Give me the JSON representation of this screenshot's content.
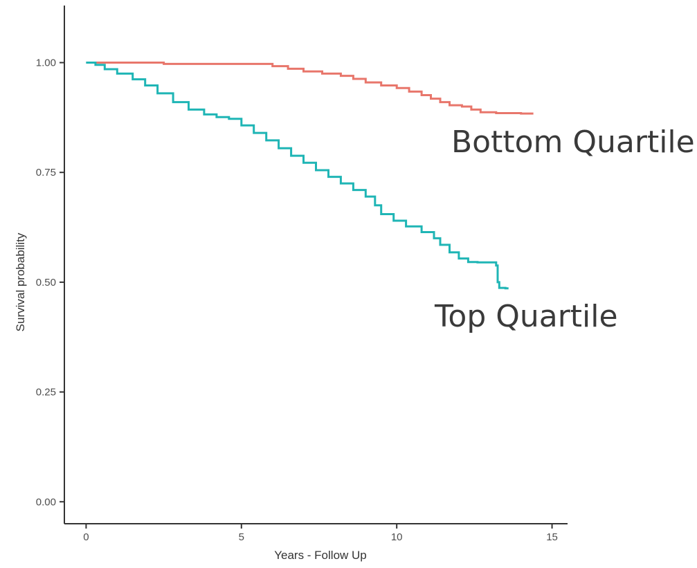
{
  "chart_data": {
    "type": "line",
    "title": "",
    "xlabel": "Years - Follow Up",
    "ylabel": "Survival probability",
    "xlim": [
      -0.7,
      15.5
    ],
    "ylim": [
      -0.05,
      1.13
    ],
    "x_ticks": [
      0,
      5,
      10,
      15
    ],
    "y_ticks": [
      0.0,
      0.25,
      0.5,
      0.75,
      1.0
    ],
    "x_tick_labels": [
      "0",
      "5",
      "10",
      "15"
    ],
    "y_tick_labels": [
      "0.00",
      "0.25",
      "0.50",
      "0.75",
      "1.00"
    ],
    "grid": false,
    "legend": "none",
    "step": true,
    "series": [
      {
        "name": "Bottom Quartile",
        "color": "#e8766b",
        "points": [
          [
            0,
            1.0
          ],
          [
            2.4,
            1.0
          ],
          [
            2.5,
            0.997
          ],
          [
            5.6,
            0.997
          ],
          [
            6.0,
            0.992
          ],
          [
            6.5,
            0.986
          ],
          [
            7.0,
            0.98
          ],
          [
            7.6,
            0.975
          ],
          [
            8.2,
            0.97
          ],
          [
            8.6,
            0.963
          ],
          [
            9.0,
            0.955
          ],
          [
            9.5,
            0.948
          ],
          [
            10.0,
            0.942
          ],
          [
            10.4,
            0.934
          ],
          [
            10.8,
            0.926
          ],
          [
            11.1,
            0.918
          ],
          [
            11.4,
            0.91
          ],
          [
            11.7,
            0.903
          ],
          [
            12.1,
            0.9
          ],
          [
            12.4,
            0.893
          ],
          [
            12.7,
            0.887
          ],
          [
            13.2,
            0.885
          ],
          [
            14.0,
            0.884
          ],
          [
            14.4,
            0.884
          ]
        ]
      },
      {
        "name": "Top Quartile",
        "color": "#1fb5b5",
        "points": [
          [
            0,
            1.0
          ],
          [
            0.3,
            0.995
          ],
          [
            0.6,
            0.985
          ],
          [
            1.0,
            0.975
          ],
          [
            1.5,
            0.962
          ],
          [
            1.9,
            0.948
          ],
          [
            2.3,
            0.93
          ],
          [
            2.8,
            0.91
          ],
          [
            3.3,
            0.893
          ],
          [
            3.8,
            0.882
          ],
          [
            4.2,
            0.876
          ],
          [
            4.6,
            0.872
          ],
          [
            5.0,
            0.857
          ],
          [
            5.4,
            0.84
          ],
          [
            5.8,
            0.823
          ],
          [
            6.2,
            0.805
          ],
          [
            6.6,
            0.788
          ],
          [
            7.0,
            0.772
          ],
          [
            7.4,
            0.755
          ],
          [
            7.8,
            0.74
          ],
          [
            8.2,
            0.725
          ],
          [
            8.6,
            0.71
          ],
          [
            9.0,
            0.695
          ],
          [
            9.3,
            0.675
          ],
          [
            9.5,
            0.655
          ],
          [
            9.9,
            0.64
          ],
          [
            10.3,
            0.627
          ],
          [
            10.8,
            0.614
          ],
          [
            11.2,
            0.6
          ],
          [
            11.4,
            0.585
          ],
          [
            11.7,
            0.568
          ],
          [
            12.0,
            0.554
          ],
          [
            12.3,
            0.546
          ],
          [
            12.6,
            0.545
          ],
          [
            13.0,
            0.545
          ],
          [
            13.2,
            0.538
          ],
          [
            13.25,
            0.5
          ],
          [
            13.3,
            0.487
          ],
          [
            13.5,
            0.486
          ],
          [
            13.6,
            0.486
          ]
        ]
      }
    ]
  }
}
